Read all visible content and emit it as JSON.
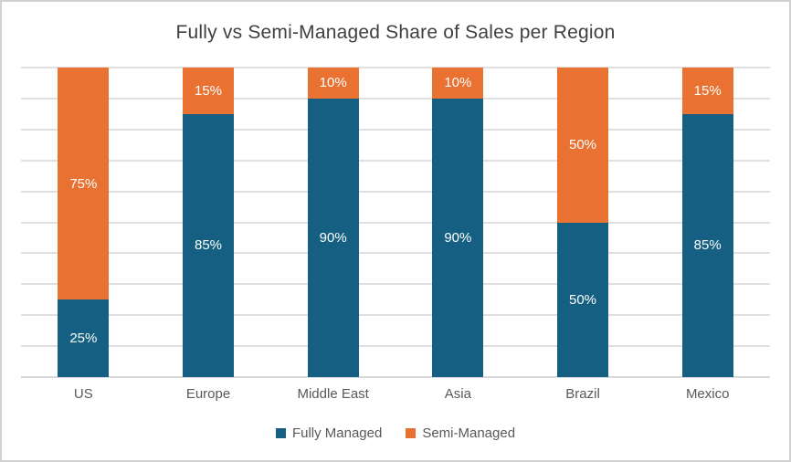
{
  "title": "Fully vs Semi-Managed Share of Sales per Region",
  "chart_data": {
    "type": "bar",
    "subtype": "stacked-100",
    "title": "Fully vs Semi-Managed Share of Sales per Region",
    "categories": [
      "US",
      "Europe",
      "Middle East",
      "Asia",
      "Brazil",
      "Mexico"
    ],
    "series": [
      {
        "name": "Fully Managed",
        "color": "#156082",
        "values": [
          25,
          85,
          90,
          90,
          50,
          85
        ]
      },
      {
        "name": "Semi-Managed",
        "color": "#E97132",
        "values": [
          75,
          15,
          10,
          10,
          50,
          15
        ]
      }
    ],
    "value_suffix": "%",
    "data_labels": {
      "Fully Managed": [
        "25%",
        "85%",
        "90%",
        "90%",
        "50%",
        "85%"
      ],
      "Semi-Managed": [
        "75%",
        "15%",
        "10%",
        "10%",
        "50%",
        "15%"
      ]
    },
    "xlabel": "",
    "ylabel": "",
    "ylim": [
      0,
      100
    ],
    "gridline_interval": 10,
    "grid": true,
    "y_tick_labels_visible": false,
    "legend_position": "bottom",
    "colors": {
      "fully_managed": "#156082",
      "semi_managed": "#E97132",
      "gridline": "#E0E0E0",
      "title_text": "#404040",
      "axis_text": "#595959",
      "data_label_text": "#FFFFFF"
    }
  }
}
